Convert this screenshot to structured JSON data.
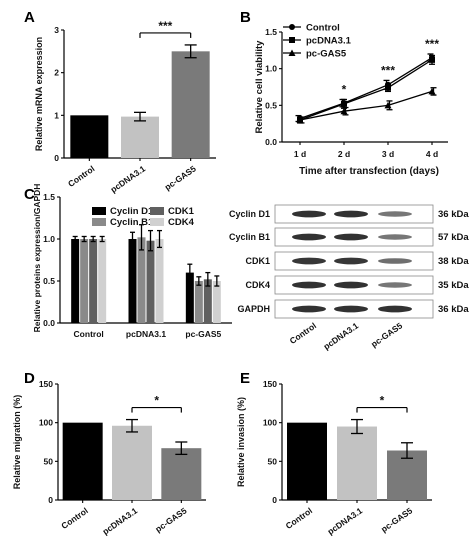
{
  "figure": {
    "panels": [
      "A",
      "B",
      "C",
      "D",
      "E"
    ]
  },
  "colors": {
    "black": "#000000",
    "light_gray": "#c2c2c2",
    "dark_gray": "#7a7a7a",
    "cyclin_d1": "#000000",
    "cyclin_b1": "#8a8a8a",
    "cdk1": "#606060",
    "cdk4": "#d0d0d0",
    "band": "#2b2b2b"
  },
  "chart_data": [
    {
      "panel": "A",
      "type": "bar",
      "categories": [
        "Control",
        "pcDNA3.1",
        "pc-GAS5"
      ],
      "values": [
        1.0,
        0.97,
        2.5
      ],
      "errors": [
        0,
        0.1,
        0.15
      ],
      "ylabel": "Relative mRNA expression",
      "xlabel": "",
      "ylim": [
        0,
        3
      ],
      "yticks": [
        "0",
        "1",
        "2",
        "3"
      ],
      "significance": [
        {
          "from": "pcDNA3.1",
          "to": "pc-GAS5",
          "label": "***"
        }
      ]
    },
    {
      "panel": "B",
      "type": "line",
      "x": [
        "1 d",
        "2 d",
        "3 d",
        "4 d"
      ],
      "series": [
        {
          "name": "Control",
          "values": [
            0.32,
            0.53,
            0.78,
            1.15
          ],
          "errors": [
            0.04,
            0.05,
            0.06,
            0.05
          ],
          "marker": "circle"
        },
        {
          "name": "pcDNA3.1",
          "values": [
            0.3,
            0.52,
            0.74,
            1.12
          ],
          "errors": [
            0.04,
            0.06,
            0.05,
            0.06
          ],
          "marker": "square"
        },
        {
          "name": "pc-GAS5",
          "values": [
            0.3,
            0.42,
            0.5,
            0.69
          ],
          "errors": [
            0.04,
            0.05,
            0.06,
            0.05
          ],
          "marker": "triangle"
        }
      ],
      "ylabel": "Relative cell viability",
      "xlabel": "Time after transfection (days)",
      "ylim": [
        0,
        1.5
      ],
      "yticks": [
        "0.0",
        "0.5",
        "1.0",
        "1.5"
      ],
      "significance": [
        "",
        "*",
        "***",
        "***"
      ],
      "legend": "top-left"
    },
    {
      "panel": "C",
      "type": "bar",
      "categories": [
        "Control",
        "pcDNA3.1",
        "pc-GAS5"
      ],
      "series": [
        {
          "name": "Cyclin D1",
          "values": [
            1.0,
            1.0,
            0.6
          ],
          "errors": [
            0.03,
            0.08,
            0.1
          ]
        },
        {
          "name": "Cyclin B1",
          "values": [
            1.0,
            1.02,
            0.5
          ],
          "errors": [
            0.03,
            0.15,
            0.05
          ]
        },
        {
          "name": "CDK1",
          "values": [
            1.0,
            0.98,
            0.52
          ],
          "errors": [
            0.03,
            0.12,
            0.08
          ]
        },
        {
          "name": "CDK4",
          "values": [
            1.0,
            1.0,
            0.5
          ],
          "errors": [
            0.03,
            0.1,
            0.06
          ]
        }
      ],
      "ylabel": "Relative proteins expression/GAPDH",
      "xlabel": "",
      "ylim": [
        0,
        1.5
      ],
      "yticks": [
        "0.0",
        "0.5",
        "1.0",
        "1.5"
      ],
      "legend": "top"
    },
    {
      "panel": "D",
      "type": "bar",
      "categories": [
        "Control",
        "pcDNA3.1",
        "pc-GAS5"
      ],
      "values": [
        100,
        96,
        67
      ],
      "errors": [
        0,
        8,
        8
      ],
      "ylabel": "Relative migration (%)",
      "xlabel": "",
      "ylim": [
        0,
        150
      ],
      "yticks": [
        "0",
        "50",
        "100",
        "150"
      ],
      "significance": [
        {
          "from": "pcDNA3.1",
          "to": "pc-GAS5",
          "label": "*"
        }
      ]
    },
    {
      "panel": "E",
      "type": "bar",
      "categories": [
        "Control",
        "pcDNA3.1",
        "pc-GAS5"
      ],
      "values": [
        100,
        95,
        64
      ],
      "errors": [
        0,
        9,
        10
      ],
      "ylabel": "Relative invasion (%)",
      "xlabel": "",
      "ylim": [
        0,
        150
      ],
      "yticks": [
        "0",
        "50",
        "100",
        "150"
      ],
      "significance": [
        {
          "from": "pcDNA3.1",
          "to": "pc-GAS5",
          "label": "*"
        }
      ]
    }
  ],
  "blot": {
    "proteins": [
      {
        "name": "Cyclin D1",
        "kda": "36 kDa",
        "intensity": [
          0.95,
          0.95,
          0.45
        ]
      },
      {
        "name": "Cyclin B1",
        "kda": "57 kDa",
        "intensity": [
          0.95,
          0.95,
          0.45
        ]
      },
      {
        "name": "CDK1",
        "kda": "38 kDa",
        "intensity": [
          0.9,
          0.9,
          0.5
        ]
      },
      {
        "name": "CDK4",
        "kda": "35 kDa",
        "intensity": [
          0.95,
          0.95,
          0.45
        ]
      },
      {
        "name": "GAPDH",
        "kda": "36 kDa",
        "intensity": [
          0.95,
          0.95,
          0.95
        ]
      }
    ],
    "lanes": [
      "Control",
      "pcDNA3.1",
      "pc-GAS5"
    ]
  }
}
